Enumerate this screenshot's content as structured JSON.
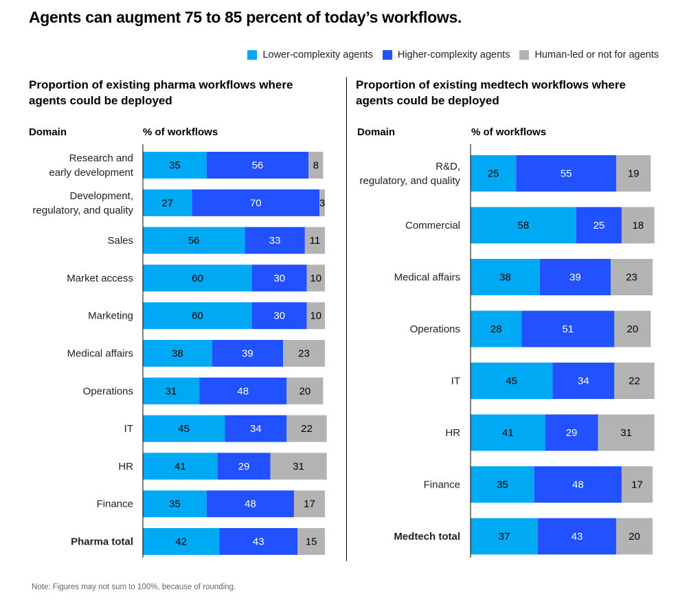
{
  "title": "Agents can augment 75 to 85 percent of today’s workflows.",
  "legend": [
    {
      "label": "Lower-complexity agents",
      "color": "#00A9F4"
    },
    {
      "label": "Higher-complexity agents",
      "color": "#2251FF"
    },
    {
      "label": "Human-led or not for agents",
      "color": "#B3B3B3"
    }
  ],
  "note": "Note: Figures may not sum to 100%, because of rounding.",
  "chart_data": [
    {
      "type": "bar",
      "orientation": "horizontal-stacked",
      "title": "Proportion of existing pharma workflows where agents could be deployed",
      "category_header": "Domain",
      "value_header": "% of workflows",
      "xlim": [
        0,
        100
      ],
      "categories": [
        "Research and\nearly development",
        "Development,\nregulatory, and quality",
        "Sales",
        "Market access",
        "Marketing",
        "Medical affairs",
        "Operations",
        "IT",
        "HR",
        "Finance",
        "Pharma total"
      ],
      "bold_categories": [
        "Pharma total"
      ],
      "series": [
        {
          "name": "Lower-complexity agents",
          "values": [
            35,
            27,
            56,
            60,
            60,
            38,
            31,
            45,
            41,
            35,
            42
          ]
        },
        {
          "name": "Higher-complexity agents",
          "values": [
            56,
            70,
            33,
            30,
            30,
            39,
            48,
            34,
            29,
            48,
            43
          ]
        },
        {
          "name": "Human-led or not for agents",
          "values": [
            8,
            3,
            11,
            10,
            10,
            23,
            20,
            22,
            31,
            17,
            15
          ]
        }
      ]
    },
    {
      "type": "bar",
      "orientation": "horizontal-stacked",
      "title": "Proportion of existing medtech workflows where agents could be deployed",
      "category_header": "Domain",
      "value_header": "% of workflows",
      "xlim": [
        0,
        100
      ],
      "categories": [
        "R&D,\nregulatory, and quality",
        "Commercial",
        "Medical affairs",
        "Operations",
        "IT",
        "HR",
        "Finance",
        "Medtech total"
      ],
      "bold_categories": [
        "Medtech total"
      ],
      "series": [
        {
          "name": "Lower-complexity agents",
          "values": [
            25,
            58,
            38,
            28,
            45,
            41,
            35,
            37
          ]
        },
        {
          "name": "Higher-complexity agents",
          "values": [
            55,
            25,
            39,
            51,
            34,
            29,
            48,
            43
          ]
        },
        {
          "name": "Human-led or not for agents",
          "values": [
            19,
            18,
            23,
            20,
            22,
            31,
            17,
            20
          ]
        }
      ]
    }
  ]
}
